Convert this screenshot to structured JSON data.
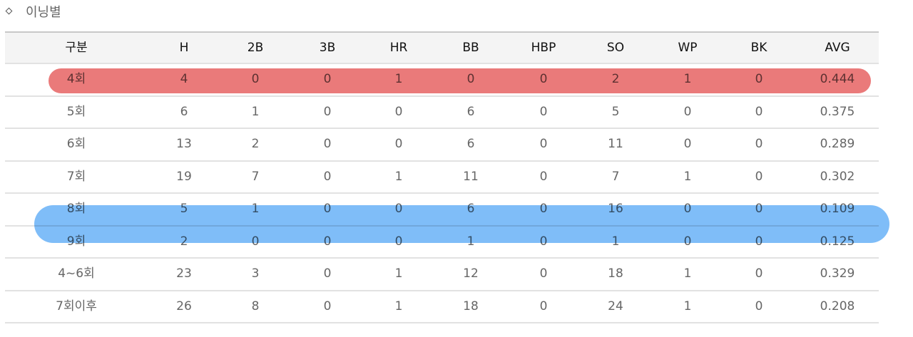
{
  "title": "이닝별",
  "table": {
    "header": [
      "구분",
      "H",
      "2B",
      "3B",
      "HR",
      "BB",
      "HBP",
      "SO",
      "WP",
      "BK",
      "AVG"
    ],
    "rows": [
      [
        "4회",
        4,
        0,
        0,
        1,
        0,
        0,
        2,
        1,
        0,
        0.444
      ],
      [
        "5회",
        6,
        1,
        0,
        0,
        6,
        0,
        5,
        0,
        0,
        0.375
      ],
      [
        "6회",
        13,
        2,
        0,
        0,
        6,
        0,
        11,
        0,
        0,
        0.289
      ],
      [
        "7회",
        19,
        7,
        0,
        1,
        11,
        0,
        7,
        1,
        0,
        0.302
      ],
      [
        "8회",
        5,
        1,
        0,
        0,
        6,
        0,
        16,
        0,
        0,
        0.109
      ],
      [
        "9회",
        2,
        0,
        0,
        0,
        1,
        0,
        1,
        0,
        0,
        0.125
      ],
      [
        "4~6회",
        23,
        3,
        0,
        1,
        12,
        0,
        18,
        1,
        0,
        0.329
      ],
      [
        "7회이후",
        26,
        8,
        0,
        1,
        18,
        0,
        24,
        1,
        0,
        0.208
      ]
    ]
  }
}
